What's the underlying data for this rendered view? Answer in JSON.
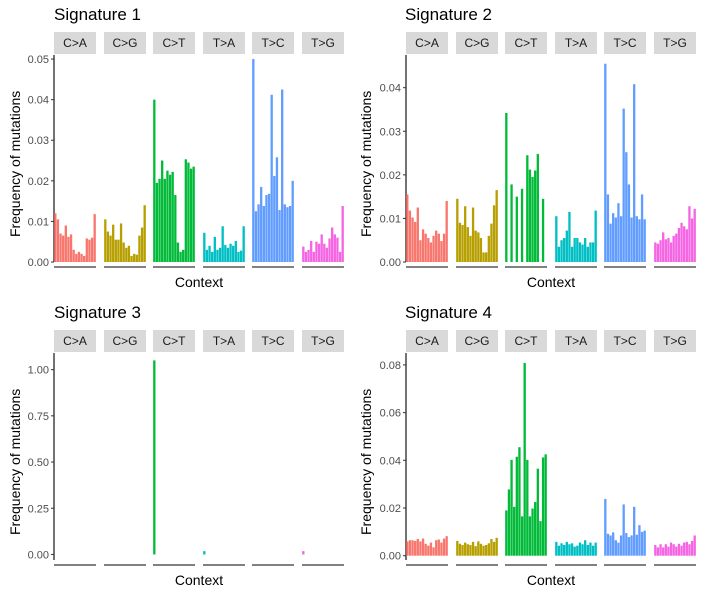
{
  "colors": {
    "C>A": "#F8766D",
    "C>G": "#B79F00",
    "C>T": "#00BA38",
    "T>A": "#00BFC4",
    "T>C": "#619CFF",
    "T>G": "#F564E3",
    "strip": "#d9d9d9",
    "axis": "#000000"
  },
  "chart_data": [
    {
      "type": "bar",
      "title": "Signature 1",
      "xlabel": "Context",
      "ylabel": "Frequency of mutations",
      "facets": [
        "C>A",
        "C>G",
        "C>T",
        "T>A",
        "T>C",
        "T>G"
      ],
      "ylim": [
        0,
        0.051
      ],
      "yticks": [
        0.0,
        0.01,
        0.02,
        0.03,
        0.04,
        0.05
      ],
      "ytick_labels": [
        "0.00",
        "0.01",
        "0.02",
        "0.03",
        "0.04",
        "0.05"
      ],
      "series": [
        {
          "facet": "C>A",
          "values": [
            0.012,
            0.0105,
            0.007,
            0.0065,
            0.009,
            0.0062,
            0.0068,
            0.003,
            0.002,
            0.0025,
            0.002,
            0.0015,
            0.0058,
            0.0055,
            0.006,
            0.0118
          ]
        },
        {
          "facet": "C>G",
          "values": [
            0.0105,
            0.0075,
            0.0065,
            0.0092,
            0.0055,
            0.0055,
            0.0095,
            0.0048,
            0.0035,
            0.004,
            0.0015,
            0.002,
            0.0018,
            0.0065,
            0.0085,
            0.014
          ]
        },
        {
          "facet": "C>T",
          "values": [
            0.04,
            0.0195,
            0.0205,
            0.025,
            0.0205,
            0.0225,
            0.0215,
            0.0222,
            0.0165,
            0.0048,
            0.0025,
            0.003,
            0.0253,
            0.0245,
            0.023,
            0.0235
          ]
        },
        {
          "facet": "T>A",
          "values": [
            0.0072,
            0.003,
            0.004,
            0.0025,
            0.0062,
            0.003,
            0.0035,
            0.0088,
            0.0042,
            0.0035,
            0.0045,
            0.004,
            0.0052,
            0.0025,
            0.0028,
            0.0088
          ]
        },
        {
          "facet": "T>C",
          "values": [
            0.05,
            0.0125,
            0.0142,
            0.0185,
            0.0138,
            0.0165,
            0.0168,
            0.0412,
            0.0212,
            0.0258,
            0.0128,
            0.0425,
            0.0142,
            0.0135,
            0.0138,
            0.02
          ]
        },
        {
          "facet": "T>G",
          "values": [
            0.0038,
            0.0025,
            0.003,
            0.0052,
            0.0025,
            0.005,
            0.0045,
            0.0068,
            0.0045,
            0.0035,
            0.0058,
            0.0085,
            0.0068,
            0.006,
            0.0025,
            0.0138
          ]
        }
      ]
    },
    {
      "type": "bar",
      "title": "Signature 2",
      "xlabel": "Context",
      "ylabel": "Frequency of mutations",
      "facets": [
        "C>A",
        "C>G",
        "C>T",
        "T>A",
        "T>C",
        "T>G"
      ],
      "ylim": [
        0,
        0.0475
      ],
      "yticks": [
        0.0,
        0.01,
        0.02,
        0.03,
        0.04
      ],
      "ytick_labels": [
        "0.00",
        "0.01",
        "0.02",
        "0.03",
        "0.04"
      ],
      "series": [
        {
          "facet": "C>A",
          "values": [
            0.0155,
            0.0118,
            0.0102,
            0.0092,
            0.0125,
            0.005,
            0.0075,
            0.0065,
            0.0055,
            0.0045,
            0.006,
            0.0072,
            0.0065,
            0.0048,
            0.0065,
            0.014
          ]
        },
        {
          "facet": "C>G",
          "values": [
            0.0145,
            0.009,
            0.0085,
            0.0128,
            0.008,
            0.006,
            0.0125,
            0.0072,
            0.0068,
            0.0055,
            0.0022,
            0.0022,
            0.006,
            0.0088,
            0.013,
            0.0165
          ]
        },
        {
          "facet": "C>T",
          "values": [
            0.0342,
            0,
            0.0178,
            0,
            0.015,
            0,
            0.0168,
            0,
            0.0245,
            0.0212,
            0.0195,
            0.021,
            0.0248,
            0,
            0.0145,
            0
          ]
        },
        {
          "facet": "T>A",
          "values": [
            0.0105,
            0.0035,
            0.005,
            0.0055,
            0.0072,
            0.0115,
            0.0035,
            0.0055,
            0.0055,
            0.0045,
            0.004,
            0.0055,
            0.0035,
            0.0045,
            0.0045,
            0.0118
          ]
        },
        {
          "facet": "T>C",
          "values": [
            0.0455,
            0.0155,
            0.0088,
            0.0112,
            0.0102,
            0.0135,
            0.0105,
            0.0352,
            0.0252,
            0.0178,
            0.0102,
            0.0408,
            0.0105,
            0.0098,
            0.0155,
            0.0098
          ]
        },
        {
          "facet": "T>G",
          "values": [
            0.0045,
            0.0042,
            0.005,
            0.0068,
            0.0052,
            0.0055,
            0.0045,
            0.006,
            0.0065,
            0.0078,
            0.009,
            0.0082,
            0.0075,
            0.0128,
            0.01,
            0.0122
          ]
        }
      ]
    },
    {
      "type": "bar",
      "title": "Signature 3",
      "xlabel": "Context",
      "ylabel": "Frequency of mutations",
      "facets": [
        "C>A",
        "C>G",
        "C>T",
        "T>A",
        "T>C",
        "T>G"
      ],
      "ylim": [
        -0.03,
        1.09
      ],
      "yticks": [
        0.0,
        0.25,
        0.5,
        0.75,
        1.0
      ],
      "ytick_labels": [
        "0.00",
        "0.25",
        "0.50",
        "0.75",
        "1.00"
      ],
      "series": [
        {
          "facet": "C>A",
          "values": [
            0,
            0,
            0,
            0,
            0,
            0,
            0,
            0,
            0,
            0,
            0,
            0,
            0,
            0,
            0,
            0
          ]
        },
        {
          "facet": "C>G",
          "values": [
            0,
            0,
            0,
            0,
            0,
            0,
            0,
            0,
            0,
            0,
            0,
            0,
            0,
            0,
            0,
            0
          ]
        },
        {
          "facet": "C>T",
          "values": [
            1.05,
            0,
            0,
            0,
            0,
            0,
            0,
            0,
            0,
            0,
            0,
            0,
            0,
            0,
            0,
            0
          ]
        },
        {
          "facet": "T>A",
          "values": [
            0.018,
            0,
            0,
            0,
            0,
            0,
            0,
            0,
            0,
            0,
            0,
            0,
            0,
            0,
            0,
            0
          ]
        },
        {
          "facet": "T>C",
          "values": [
            0,
            0,
            0,
            0,
            0,
            0,
            0,
            0,
            0,
            0,
            0,
            0,
            0,
            0,
            0,
            0
          ]
        },
        {
          "facet": "T>G",
          "values": [
            0.018,
            0,
            0,
            0,
            0,
            0,
            0,
            0,
            0,
            0,
            0,
            0,
            0,
            0,
            0,
            0
          ]
        }
      ]
    },
    {
      "type": "bar",
      "title": "Signature 4",
      "xlabel": "Context",
      "ylabel": "Frequency of mutations",
      "facets": [
        "C>A",
        "C>G",
        "C>T",
        "T>A",
        "T>C",
        "T>G"
      ],
      "ylim": [
        -0.0018,
        0.085
      ],
      "yticks": [
        0.0,
        0.02,
        0.04,
        0.06,
        0.08
      ],
      "ytick_labels": [
        "0.00",
        "0.02",
        "0.04",
        "0.06",
        "0.08"
      ],
      "series": [
        {
          "facet": "C>A",
          "values": [
            0.006,
            0.0065,
            0.0065,
            0.0062,
            0.007,
            0.006,
            0.0072,
            0.005,
            0.0042,
            0.0055,
            0.0035,
            0.0065,
            0.0068,
            0.0055,
            0.0072,
            0.0082
          ]
        },
        {
          "facet": "C>G",
          "values": [
            0.0062,
            0.005,
            0.0045,
            0.0055,
            0.0048,
            0.0045,
            0.0058,
            0.004,
            0.006,
            0.005,
            0.0042,
            0.0045,
            0.0052,
            0.007,
            0.0058,
            0.0075
          ]
        },
        {
          "facet": "C>T",
          "values": [
            0.019,
            0.0278,
            0.0402,
            0.0205,
            0.0415,
            0.0455,
            0.0165,
            0.0808,
            0.0402,
            0.0165,
            0.0198,
            0.0225,
            0.0365,
            0.0145,
            0.0412,
            0.0425
          ]
        },
        {
          "facet": "T>A",
          "values": [
            0.0058,
            0.0042,
            0.0052,
            0.0045,
            0.0058,
            0.0048,
            0.0052,
            0.0038,
            0.0042,
            0.0055,
            0.0048,
            0.0065,
            0.0045,
            0.0055,
            0.0042,
            0.0055
          ]
        },
        {
          "facet": "T>C",
          "values": [
            0.0238,
            0.0092,
            0.0085,
            0.0098,
            0.0065,
            0.0055,
            0.0085,
            0.0215,
            0.0095,
            0.0078,
            0.0085,
            0.0205,
            0.0088,
            0.0128,
            0.01,
            0.0105
          ]
        },
        {
          "facet": "T>G",
          "values": [
            0.0045,
            0.0035,
            0.0048,
            0.0035,
            0.0048,
            0.0038,
            0.0055,
            0.0048,
            0.0038,
            0.005,
            0.0042,
            0.0055,
            0.0058,
            0.0048,
            0.0062,
            0.0085
          ]
        }
      ]
    }
  ]
}
